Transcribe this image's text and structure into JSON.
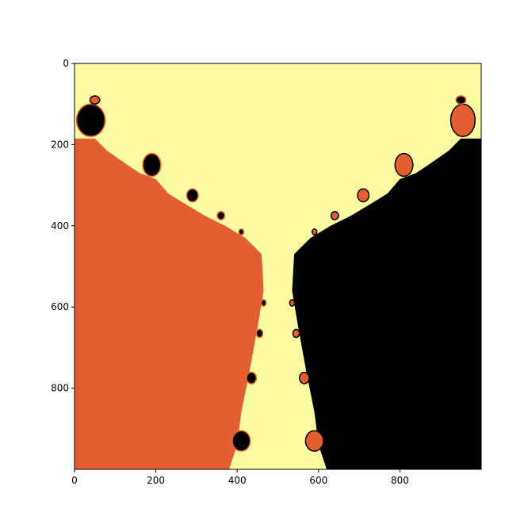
{
  "chart_data": {
    "type": "heatmap",
    "title": "",
    "xlabel": "",
    "ylabel": "",
    "xlim": [
      0,
      1000
    ],
    "ylim": [
      1000,
      0
    ],
    "grid": false,
    "xticks": [
      {
        "value": 0,
        "label": "0"
      },
      {
        "value": 200,
        "label": "200"
      },
      {
        "value": 400,
        "label": "400"
      },
      {
        "value": 600,
        "label": "600"
      },
      {
        "value": 800,
        "label": "800"
      }
    ],
    "yticks": [
      {
        "value": 0,
        "label": "0"
      },
      {
        "value": 200,
        "label": "200"
      },
      {
        "value": 400,
        "label": "400"
      },
      {
        "value": 600,
        "label": "600"
      },
      {
        "value": 800,
        "label": "800"
      }
    ],
    "colors": {
      "background_basin": "#fbfca2",
      "left_basin": "#e35f2f",
      "right_basin": "#000000"
    },
    "basins": {
      "left_boundary": [
        [
          0,
          185
        ],
        [
          50,
          185
        ],
        [
          80,
          215
        ],
        [
          130,
          250
        ],
        [
          160,
          270
        ],
        [
          200,
          285
        ],
        [
          230,
          320
        ],
        [
          270,
          345
        ],
        [
          320,
          375
        ],
        [
          370,
          400
        ],
        [
          420,
          430
        ],
        [
          460,
          470
        ],
        [
          465,
          560
        ],
        [
          450,
          650
        ],
        [
          430,
          760
        ],
        [
          410,
          860
        ],
        [
          400,
          940
        ],
        [
          380,
          1000
        ]
      ],
      "right_boundary": [
        [
          1000,
          185
        ],
        [
          950,
          185
        ],
        [
          920,
          215
        ],
        [
          870,
          250
        ],
        [
          840,
          270
        ],
        [
          800,
          285
        ],
        [
          770,
          320
        ],
        [
          730,
          345
        ],
        [
          680,
          375
        ],
        [
          630,
          400
        ],
        [
          580,
          430
        ],
        [
          540,
          470
        ],
        [
          535,
          560
        ],
        [
          550,
          650
        ],
        [
          570,
          760
        ],
        [
          590,
          860
        ],
        [
          600,
          940
        ],
        [
          620,
          1000
        ]
      ],
      "bulbs": [
        {
          "cx": 40,
          "cy": 140,
          "rx": 35,
          "ry": 40,
          "color": "right_basin"
        },
        {
          "cx": 50,
          "cy": 90,
          "rx": 12,
          "ry": 10,
          "color": "left_basin"
        },
        {
          "cx": 190,
          "cy": 250,
          "rx": 22,
          "ry": 28,
          "color": "right_basin"
        },
        {
          "cx": 290,
          "cy": 325,
          "rx": 14,
          "ry": 16,
          "color": "right_basin"
        },
        {
          "cx": 360,
          "cy": 375,
          "rx": 9,
          "ry": 10,
          "color": "right_basin"
        },
        {
          "cx": 410,
          "cy": 415,
          "rx": 6,
          "ry": 7,
          "color": "right_basin"
        },
        {
          "cx": 955,
          "cy": 140,
          "rx": 30,
          "ry": 40,
          "color": "left_basin"
        },
        {
          "cx": 950,
          "cy": 90,
          "rx": 12,
          "ry": 10,
          "color": "right_basin"
        },
        {
          "cx": 810,
          "cy": 250,
          "rx": 22,
          "ry": 28,
          "color": "left_basin"
        },
        {
          "cx": 710,
          "cy": 325,
          "rx": 14,
          "ry": 16,
          "color": "left_basin"
        },
        {
          "cx": 640,
          "cy": 375,
          "rx": 9,
          "ry": 10,
          "color": "left_basin"
        },
        {
          "cx": 590,
          "cy": 415,
          "rx": 6,
          "ry": 7,
          "color": "left_basin"
        },
        {
          "cx": 410,
          "cy": 930,
          "rx": 22,
          "ry": 25,
          "color": "right_basin"
        },
        {
          "cx": 435,
          "cy": 775,
          "rx": 12,
          "ry": 14,
          "color": "right_basin"
        },
        {
          "cx": 455,
          "cy": 665,
          "rx": 8,
          "ry": 10,
          "color": "right_basin"
        },
        {
          "cx": 465,
          "cy": 590,
          "rx": 6,
          "ry": 8,
          "color": "right_basin"
        },
        {
          "cx": 590,
          "cy": 930,
          "rx": 22,
          "ry": 25,
          "color": "left_basin"
        },
        {
          "cx": 565,
          "cy": 775,
          "rx": 12,
          "ry": 14,
          "color": "left_basin"
        },
        {
          "cx": 545,
          "cy": 665,
          "rx": 8,
          "ry": 10,
          "color": "left_basin"
        },
        {
          "cx": 535,
          "cy": 590,
          "rx": 6,
          "ry": 8,
          "color": "left_basin"
        }
      ]
    }
  }
}
